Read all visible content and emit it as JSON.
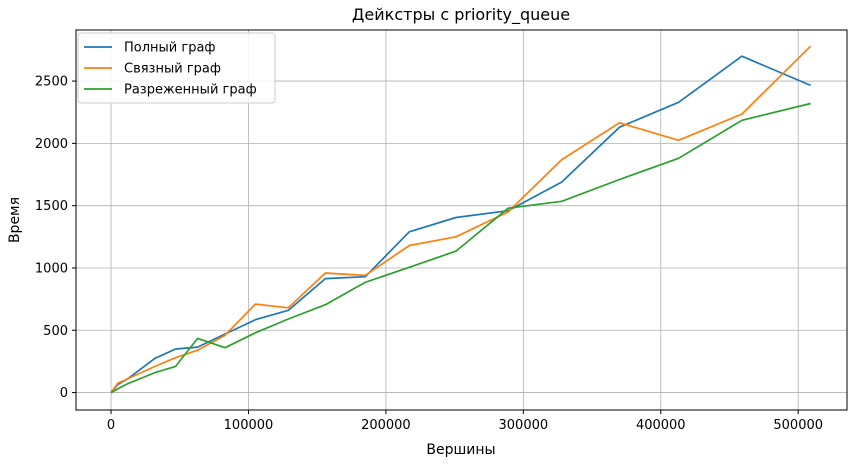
{
  "chart_data": {
    "type": "line",
    "title": "Дейкстры с priority_queue",
    "xlabel": "Вершины",
    "ylabel": "Время",
    "xlim": [
      -25500,
      535500
    ],
    "ylim": [
      -140,
      2910
    ],
    "xticks": [
      0,
      100000,
      200000,
      300000,
      400000,
      500000
    ],
    "xtick_labels": [
      "0",
      "100000",
      "200000",
      "300000",
      "400000",
      "500000"
    ],
    "yticks": [
      0,
      500,
      1000,
      1500,
      2000,
      2500
    ],
    "ytick_labels": [
      "0",
      "500",
      "1000",
      "1500",
      "2000",
      "2500"
    ],
    "grid": true,
    "legend_position": "top-left",
    "series": [
      {
        "name": "Полный граф",
        "color": "#1f77b4",
        "x": [
          0,
          5000,
          12000,
          32000,
          47000,
          63000,
          83000,
          105000,
          129000,
          156000,
          185000,
          217000,
          251000,
          289000,
          328000,
          370000,
          413000,
          459000,
          509000
        ],
        "y": [
          0,
          65,
          110,
          275,
          350,
          365,
          470,
          585,
          660,
          915,
          930,
          1290,
          1405,
          1460,
          1690,
          2130,
          2330,
          2700,
          2465
        ]
      },
      {
        "name": "Связный граф",
        "color": "#ff7f0e",
        "x": [
          0,
          5000,
          12000,
          32000,
          47000,
          63000,
          83000,
          105000,
          129000,
          156000,
          185000,
          217000,
          251000,
          289000,
          328000,
          370000,
          413000,
          459000,
          509000
        ],
        "y": [
          0,
          75,
          110,
          210,
          280,
          340,
          460,
          710,
          680,
          960,
          940,
          1180,
          1250,
          1450,
          1870,
          2165,
          2025,
          2235,
          2780
        ]
      },
      {
        "name": "Разреженный граф",
        "color": "#2ca02c",
        "x": [
          0,
          5000,
          12000,
          32000,
          47000,
          63000,
          83000,
          105000,
          129000,
          156000,
          185000,
          217000,
          251000,
          289000,
          328000,
          370000,
          413000,
          459000,
          509000
        ],
        "y": [
          0,
          30,
          70,
          160,
          210,
          435,
          360,
          480,
          590,
          705,
          885,
          1005,
          1135,
          1480,
          1535,
          1710,
          1880,
          2185,
          2320
        ]
      }
    ]
  }
}
